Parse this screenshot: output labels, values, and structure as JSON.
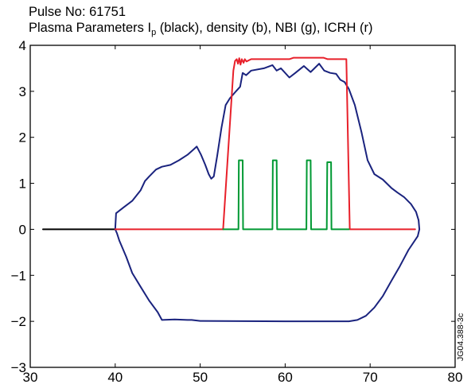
{
  "title": {
    "line1": "Pulse No: 61751",
    "line2_prefix": "Plasma Parameters I",
    "line2_sub": "p",
    "line2_suffix": " (black), density (b), NBI (g), ICRH (r)"
  },
  "side_label": "JG04.388-3c",
  "colors": {
    "ip": "#000000",
    "density": "#1a237e",
    "nbi": "#009933",
    "icrh": "#e8202a",
    "frame": "#000000"
  },
  "chart_data": {
    "type": "line",
    "title": "Plasma Parameters Ip (black), density (b), NBI (g), ICRH (r)",
    "xlim": [
      30,
      80
    ],
    "ylim": [
      -3,
      4
    ],
    "xticks": [
      30,
      40,
      50,
      60,
      70,
      80
    ],
    "yticks": [
      -3,
      -2,
      -1,
      0,
      1,
      2,
      3,
      4
    ],
    "xlabel": "",
    "ylabel": "",
    "grid": false,
    "series": [
      {
        "name": "Ip (black)",
        "key": "ip",
        "points": [
          [
            31.5,
            0
          ],
          [
            39.9,
            0
          ]
        ]
      },
      {
        "name": "density (b)",
        "key": "density",
        "points": [
          [
            40.0,
            0.0
          ],
          [
            40.1,
            0.35
          ],
          [
            41.0,
            0.48
          ],
          [
            42.0,
            0.62
          ],
          [
            43.0,
            0.85
          ],
          [
            43.5,
            1.05
          ],
          [
            44.0,
            1.15
          ],
          [
            44.8,
            1.3
          ],
          [
            45.5,
            1.36
          ],
          [
            46.5,
            1.4
          ],
          [
            47.5,
            1.5
          ],
          [
            48.5,
            1.62
          ],
          [
            49.3,
            1.75
          ],
          [
            49.6,
            1.8
          ],
          [
            50.1,
            1.62
          ],
          [
            50.6,
            1.4
          ],
          [
            51.0,
            1.2
          ],
          [
            51.3,
            1.1
          ],
          [
            51.6,
            1.15
          ],
          [
            52.0,
            1.6
          ],
          [
            52.5,
            2.2
          ],
          [
            53.0,
            2.7
          ],
          [
            53.5,
            2.85
          ],
          [
            54.2,
            3.0
          ],
          [
            54.7,
            3.1
          ],
          [
            55.0,
            3.4
          ],
          [
            55.4,
            3.35
          ],
          [
            56.0,
            3.45
          ],
          [
            57.5,
            3.5
          ],
          [
            58.5,
            3.57
          ],
          [
            59.0,
            3.45
          ],
          [
            59.5,
            3.5
          ],
          [
            60.5,
            3.3
          ],
          [
            61.2,
            3.4
          ],
          [
            62.2,
            3.55
          ],
          [
            63.0,
            3.42
          ],
          [
            64.0,
            3.6
          ],
          [
            64.6,
            3.45
          ],
          [
            65.3,
            3.4
          ],
          [
            66.0,
            3.38
          ],
          [
            66.5,
            3.25
          ],
          [
            67.0,
            3.2
          ],
          [
            67.5,
            3.05
          ],
          [
            68.2,
            2.7
          ],
          [
            69.0,
            2.1
          ],
          [
            69.7,
            1.5
          ],
          [
            70.5,
            1.2
          ],
          [
            71.5,
            1.08
          ],
          [
            72.5,
            0.9
          ],
          [
            73.2,
            0.8
          ],
          [
            74.0,
            0.7
          ],
          [
            74.8,
            0.55
          ],
          [
            75.4,
            0.38
          ],
          [
            75.7,
            0.2
          ],
          [
            75.8,
            0.0
          ],
          [
            75.6,
            -0.15
          ],
          [
            74.5,
            -0.45
          ],
          [
            73.5,
            -0.8
          ],
          [
            72.5,
            -1.12
          ],
          [
            71.5,
            -1.45
          ],
          [
            70.5,
            -1.7
          ],
          [
            69.5,
            -1.88
          ],
          [
            68.5,
            -1.97
          ],
          [
            67.5,
            -2.0
          ],
          [
            60.0,
            -2.0
          ],
          [
            50.0,
            -1.99
          ],
          [
            49.0,
            -1.97
          ],
          [
            48.5,
            -1.97
          ],
          [
            47.0,
            -1.96
          ],
          [
            45.5,
            -1.97
          ],
          [
            45.0,
            -1.8
          ],
          [
            44.0,
            -1.55
          ],
          [
            43.0,
            -1.25
          ],
          [
            42.0,
            -0.95
          ],
          [
            41.3,
            -0.6
          ],
          [
            40.8,
            -0.38
          ],
          [
            40.5,
            -0.25
          ],
          [
            40.2,
            -0.08
          ],
          [
            40.0,
            0.0
          ]
        ]
      },
      {
        "name": "ICRH (r)",
        "key": "icrh",
        "points": [
          [
            40.0,
            0.0
          ],
          [
            52.7,
            0.0
          ],
          [
            53.9,
            3.45
          ],
          [
            54.1,
            3.66
          ],
          [
            54.3,
            3.7
          ],
          [
            54.45,
            3.6
          ],
          [
            54.6,
            3.72
          ],
          [
            54.75,
            3.58
          ],
          [
            54.9,
            3.7
          ],
          [
            55.1,
            3.62
          ],
          [
            55.25,
            3.7
          ],
          [
            55.45,
            3.65
          ],
          [
            56.0,
            3.7
          ],
          [
            60.5,
            3.7
          ],
          [
            61.0,
            3.73
          ],
          [
            64.5,
            3.73
          ],
          [
            65.0,
            3.7
          ],
          [
            67.2,
            3.7
          ],
          [
            67.6,
            0.0
          ],
          [
            75.3,
            0.0
          ]
        ]
      },
      {
        "name": "NBI (g)",
        "key": "nbi",
        "points": [
          [
            52.7,
            0.0
          ],
          [
            54.5,
            0.0
          ],
          [
            54.55,
            1.5
          ],
          [
            55.0,
            1.5
          ],
          [
            55.05,
            0.0
          ],
          [
            58.5,
            0.0
          ],
          [
            58.55,
            1.5
          ],
          [
            59.0,
            1.5
          ],
          [
            59.05,
            0.0
          ],
          [
            62.5,
            0.0
          ],
          [
            62.55,
            1.5
          ],
          [
            63.0,
            1.5
          ],
          [
            63.05,
            0.0
          ],
          [
            64.9,
            0.0
          ],
          [
            64.95,
            1.46
          ],
          [
            65.4,
            1.46
          ],
          [
            65.45,
            0.0
          ],
          [
            67.5,
            0.0
          ]
        ]
      }
    ]
  }
}
